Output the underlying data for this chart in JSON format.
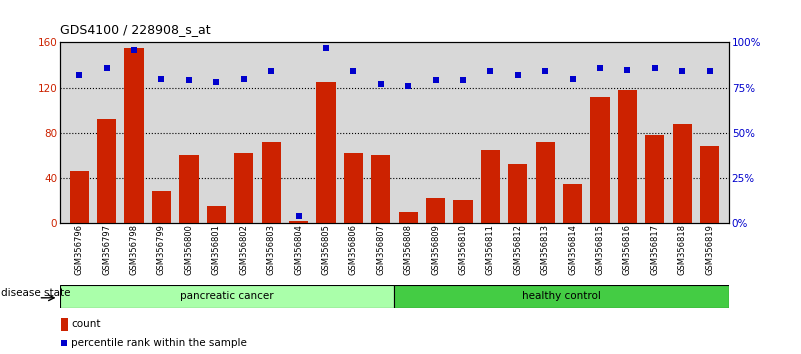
{
  "title": "GDS4100 / 228908_s_at",
  "samples": [
    "GSM356796",
    "GSM356797",
    "GSM356798",
    "GSM356799",
    "GSM356800",
    "GSM356801",
    "GSM356802",
    "GSM356803",
    "GSM356804",
    "GSM356805",
    "GSM356806",
    "GSM356807",
    "GSM356808",
    "GSM356809",
    "GSM356810",
    "GSM356811",
    "GSM356812",
    "GSM356813",
    "GSM356814",
    "GSM356815",
    "GSM356816",
    "GSM356817",
    "GSM356818",
    "GSM356819"
  ],
  "counts": [
    46,
    92,
    155,
    28,
    60,
    15,
    62,
    72,
    2,
    125,
    62,
    60,
    10,
    22,
    20,
    65,
    52,
    72,
    35,
    112,
    118,
    78,
    88,
    68
  ],
  "percentiles": [
    82,
    86,
    96,
    80,
    79,
    78,
    80,
    84,
    4,
    97,
    84,
    77,
    76,
    79,
    79,
    84,
    82,
    84,
    80,
    86,
    85,
    86,
    84,
    84
  ],
  "n_pancreatic": 12,
  "n_healthy": 12,
  "group_colors": {
    "pancreatic cancer": "#aaffaa",
    "healthy control": "#44cc44"
  },
  "bar_color": "#cc2200",
  "dot_color": "#0000cc",
  "bg_color": "#d8d8d8",
  "ylim_left": [
    0,
    160
  ],
  "ylim_right": [
    0,
    100
  ],
  "yticks_left": [
    0,
    40,
    80,
    120,
    160
  ],
  "yticks_right": [
    0,
    25,
    50,
    75,
    100
  ],
  "ytick_labels_right": [
    "0%",
    "25%",
    "50%",
    "75%",
    "100%"
  ],
  "grid_lines": [
    40,
    80,
    120
  ],
  "legend_items": [
    "count",
    "percentile rank within the sample"
  ],
  "legend_colors": [
    "#cc2200",
    "#0000cc"
  ],
  "disease_state_label": "disease state"
}
